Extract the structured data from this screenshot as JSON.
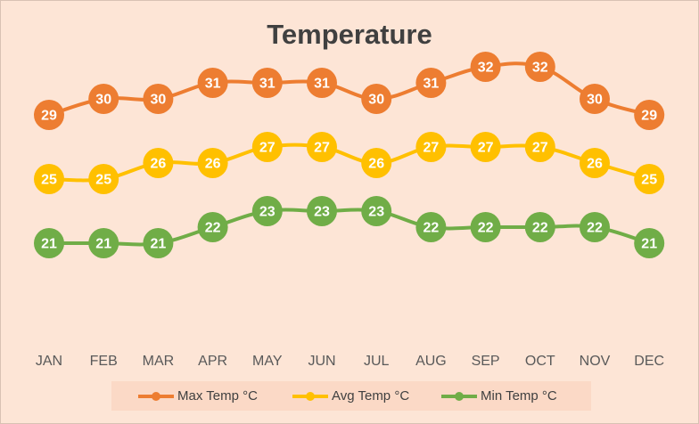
{
  "chart_data": {
    "type": "line",
    "title": "Temperature",
    "categories": [
      "JAN",
      "FEB",
      "MAR",
      "APR",
      "MAY",
      "JUN",
      "JUL",
      "AUG",
      "SEP",
      "OCT",
      "NOV",
      "DEC"
    ],
    "series": [
      {
        "name": "Max Temp °C",
        "color": "#ed7d31",
        "values": [
          29,
          30,
          30,
          31,
          31,
          31,
          30,
          31,
          32,
          32,
          30,
          29
        ]
      },
      {
        "name": "Avg Temp °C",
        "color": "#ffc000",
        "values": [
          25,
          25,
          26,
          26,
          27,
          27,
          26,
          27,
          27,
          27,
          26,
          25
        ]
      },
      {
        "name": "Min Temp °C",
        "color": "#70ad47",
        "values": [
          21,
          21,
          21,
          22,
          23,
          23,
          23,
          22,
          22,
          22,
          22,
          21
        ]
      }
    ],
    "ylim": [
      14,
      34
    ],
    "grid": false,
    "legend_position": "bottom",
    "data_labels": true,
    "background": "#fde5d6"
  }
}
